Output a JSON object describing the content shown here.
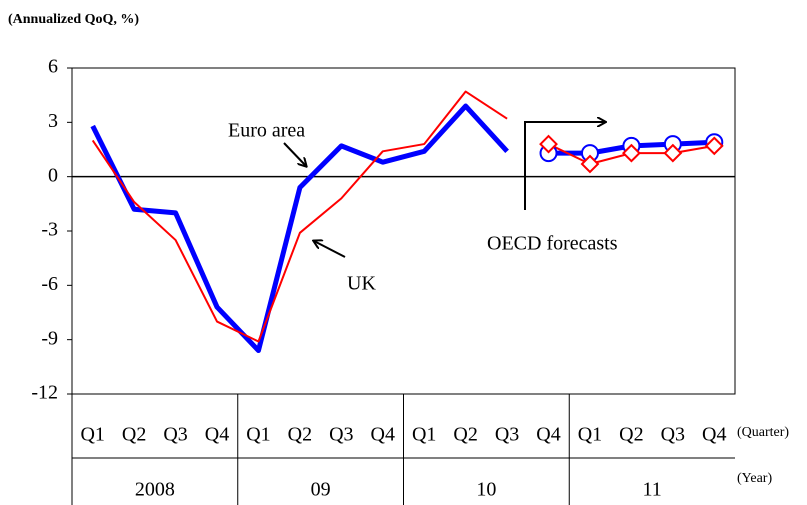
{
  "chart_data": {
    "type": "line",
    "title": "(Annualized QoQ, %)",
    "categories": [
      "Q1",
      "Q2",
      "Q3",
      "Q4",
      "Q1",
      "Q2",
      "Q3",
      "Q4",
      "Q1",
      "Q2",
      "Q3",
      "Q4",
      "Q1",
      "Q2",
      "Q3",
      "Q4"
    ],
    "years": [
      "2008",
      "09",
      "10",
      "11"
    ],
    "x_label": "(Quarter)",
    "year_label": "(Year)",
    "series": [
      {
        "name": "Euro area",
        "color": "#0000ff",
        "marker": "circle",
        "values": [
          2.8,
          -1.8,
          -2.0,
          -7.2,
          -9.6,
          -0.6,
          1.7,
          0.8,
          1.4,
          3.9,
          1.4,
          null,
          null,
          null,
          null,
          null
        ],
        "forecast_values": [
          null,
          null,
          null,
          null,
          null,
          null,
          null,
          null,
          null,
          null,
          null,
          1.3,
          1.3,
          1.7,
          1.8,
          1.9
        ]
      },
      {
        "name": "UK",
        "color": "#ff0000",
        "marker": "diamond",
        "values": [
          2.0,
          -1.4,
          -3.5,
          -8.0,
          -9.1,
          -3.1,
          -1.2,
          1.4,
          1.8,
          4.7,
          3.2,
          null,
          null,
          null,
          null,
          null
        ],
        "forecast_values": [
          null,
          null,
          null,
          null,
          null,
          null,
          null,
          null,
          null,
          null,
          null,
          1.8,
          0.7,
          1.3,
          1.3,
          1.7
        ]
      }
    ],
    "annotation": "OECD forecasts",
    "ylim": [
      -12,
      6
    ],
    "yticks": [
      6,
      3,
      0,
      -3,
      -6,
      -9,
      -12
    ]
  }
}
